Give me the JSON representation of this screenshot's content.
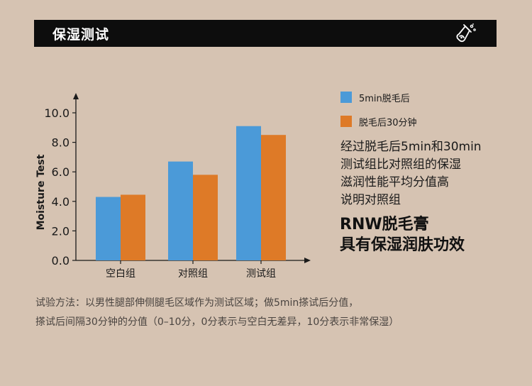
{
  "header": {
    "title": "保湿测试",
    "icon": "flask-icon"
  },
  "legend": [
    {
      "label": "5min脱毛后",
      "color": "#4b9ad8"
    },
    {
      "label": "脱毛后30分钟",
      "color": "#de7a27"
    }
  ],
  "description": {
    "lines": [
      "经过脱毛后5min和30min",
      "测试组比对照组的保湿",
      "滋润性能平均分值高",
      "说明对照组"
    ]
  },
  "highlight": {
    "lines": [
      "RNW脱毛膏",
      "具有保湿润肤功效"
    ]
  },
  "note": {
    "lines": [
      "试验方法：以男性腿部伸侧腿毛区域作为测试区域；做5min搽试后分值，",
      "搽试后间隔30分钟的分值（0–10分，0分表示与空白无差异，10分表示非常保湿）"
    ]
  },
  "chart_data": {
    "type": "bar",
    "categories": [
      "空白组",
      "对照组",
      "测试组"
    ],
    "series": [
      {
        "name": "5min脱毛后",
        "values": [
          4.3,
          6.7,
          9.1
        ],
        "color": "#4b9ad8"
      },
      {
        "name": "脱毛后30分钟",
        "values": [
          4.45,
          5.8,
          8.5
        ],
        "color": "#de7a27"
      }
    ],
    "ylabel": "Moisture Test",
    "xlabel": "",
    "ylim": [
      0,
      10.0
    ],
    "yticks": [
      "0.0",
      "2.0",
      "4.0",
      "6.0",
      "8.0",
      "10.0"
    ],
    "grid": false,
    "legend_position": "right"
  }
}
